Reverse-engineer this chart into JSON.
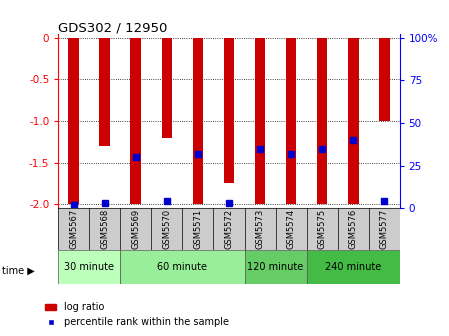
{
  "title": "GDS302 / 12950",
  "samples": [
    "GSM5567",
    "GSM5568",
    "GSM5569",
    "GSM5570",
    "GSM5571",
    "GSM5572",
    "GSM5573",
    "GSM5574",
    "GSM5575",
    "GSM5576",
    "GSM5577"
  ],
  "log_ratios": [
    -2.0,
    -1.3,
    -2.0,
    -1.2,
    -2.0,
    -1.75,
    -2.0,
    -2.0,
    -2.0,
    -2.0,
    -1.0
  ],
  "percentile_ranks": [
    2,
    3,
    30,
    4,
    32,
    3,
    35,
    32,
    35,
    40,
    4
  ],
  "groups": [
    {
      "label": "30 minute",
      "start": 0,
      "end": 2,
      "color": "#bbffbb"
    },
    {
      "label": "60 minute",
      "start": 2,
      "end": 6,
      "color": "#99ee99"
    },
    {
      "label": "120 minute",
      "start": 6,
      "end": 8,
      "color": "#66cc66"
    },
    {
      "label": "240 minute",
      "start": 8,
      "end": 11,
      "color": "#44bb44"
    }
  ],
  "ylim_min": -2.05,
  "ylim_max": 0.05,
  "y_ticks": [
    0,
    -0.5,
    -1.0,
    -1.5,
    -2.0
  ],
  "right_y_ticks": [
    0,
    25,
    50,
    75,
    100
  ],
  "bar_color": "#cc0000",
  "percentile_color": "#0000cc",
  "background_color": "#ffffff",
  "bar_width": 0.35
}
